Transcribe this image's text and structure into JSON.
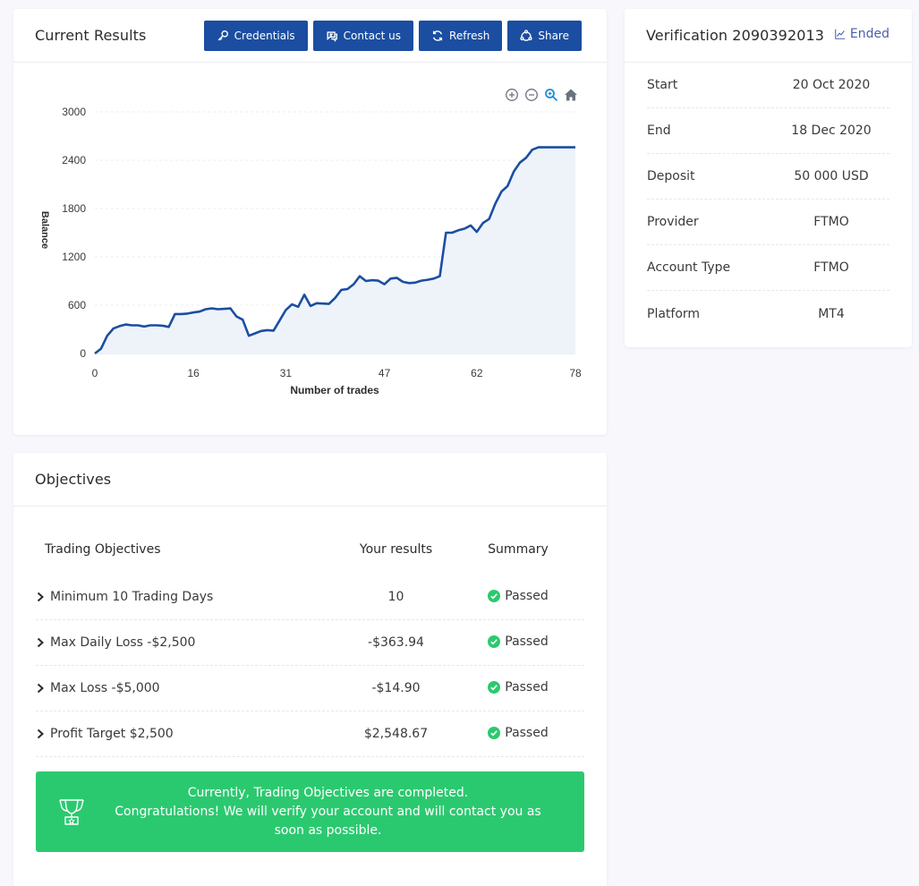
{
  "results": {
    "title": "Current Results",
    "buttons": [
      {
        "label": "Credentials",
        "icon": "key-icon"
      },
      {
        "label": "Contact us",
        "icon": "chat-icon"
      },
      {
        "label": "Refresh",
        "icon": "refresh-icon"
      },
      {
        "label": "Share",
        "icon": "share-icon"
      }
    ],
    "tools": [
      "zoom-in-icon",
      "zoom-out-icon",
      "zoom-select-icon",
      "home-icon"
    ]
  },
  "chart_data": {
    "type": "area",
    "title": "",
    "xlabel": "Number of trades",
    "ylabel": "Balance",
    "xlim": [
      0,
      78
    ],
    "ylim": [
      0,
      3000
    ],
    "x_ticks": [
      "0",
      "16",
      "31",
      "47",
      "62",
      "78"
    ],
    "y_ticks": [
      "0",
      "600",
      "1200",
      "1800",
      "2400",
      "3000"
    ],
    "grid": true,
    "color": "#1b4ea1",
    "fill": "#eef3fa",
    "series": [
      {
        "x": [
          0,
          1,
          2,
          3,
          4,
          5,
          6,
          7,
          8,
          9,
          10,
          11,
          12,
          13,
          14,
          15,
          16,
          17,
          18,
          19,
          20,
          21,
          22,
          23,
          24,
          25,
          26,
          27,
          28,
          29,
          30,
          31,
          32,
          33,
          34,
          35,
          36,
          37,
          38,
          39,
          40,
          41,
          42,
          43,
          44,
          45,
          46,
          47,
          48,
          49,
          50,
          51,
          52,
          53,
          54,
          55,
          56,
          57,
          58,
          59,
          60,
          61,
          62,
          63,
          64,
          65,
          66,
          67,
          68,
          69,
          70,
          71,
          72,
          73,
          74,
          75,
          76,
          77,
          78
        ],
        "values": [
          0,
          60,
          220,
          310,
          340,
          360,
          350,
          350,
          335,
          350,
          350,
          345,
          330,
          490,
          490,
          495,
          510,
          520,
          550,
          560,
          550,
          555,
          560,
          460,
          420,
          220,
          250,
          280,
          290,
          285,
          410,
          540,
          610,
          580,
          730,
          590,
          625,
          620,
          615,
          690,
          790,
          800,
          860,
          960,
          900,
          910,
          905,
          860,
          930,
          940,
          890,
          875,
          880,
          905,
          915,
          930,
          960,
          1500,
          1500,
          1530,
          1550,
          1590,
          1510,
          1620,
          1670,
          1860,
          2010,
          2080,
          2260,
          2370,
          2430,
          2530,
          2560,
          2560,
          2560,
          2560,
          2560,
          2560,
          2560
        ]
      }
    ]
  },
  "verification": {
    "title": "Verification 2090392013",
    "status": "Ended",
    "status_icon": "chart-line-icon",
    "rows": [
      {
        "label": "Start",
        "value": "20 Oct 2020"
      },
      {
        "label": "End",
        "value": "18 Dec 2020"
      },
      {
        "label": "Deposit",
        "value": "50 000 USD"
      },
      {
        "label": "Provider",
        "value": "FTMO"
      },
      {
        "label": "Account Type",
        "value": "FTMO"
      },
      {
        "label": "Platform",
        "value": "MT4"
      }
    ]
  },
  "objectives": {
    "title": "Objectives",
    "headers": {
      "objective": "Trading Objectives",
      "result": "Your results",
      "summary": "Summary"
    },
    "rows": [
      {
        "objective": "Minimum 10 Trading Days",
        "result": "10",
        "summary": "Passed"
      },
      {
        "objective": "Max Daily Loss -$2,500",
        "result": "-$363.94",
        "summary": "Passed"
      },
      {
        "objective": "Max Loss -$5,000",
        "result": "-$14.90",
        "summary": "Passed"
      },
      {
        "objective": "Profit Target $2,500",
        "result": "$2,548.67",
        "summary": "Passed"
      }
    ],
    "banner": {
      "line1": "Currently, Trading Objectives are completed.",
      "line2": "Congratulations! We will verify your account and will contact you as soon as possible.",
      "icon": "trophy-icon",
      "color": "#2bc96f"
    }
  }
}
